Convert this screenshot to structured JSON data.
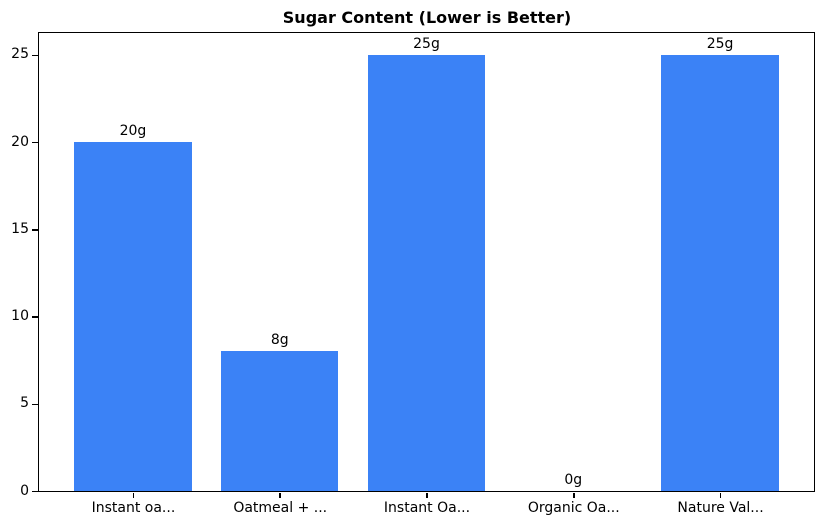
{
  "chart_data": {
    "type": "bar",
    "title": "Sugar Content (Lower is Better)",
    "categories": [
      "Instant oa...",
      "Oatmeal + ...",
      "Instant Oa...",
      "Organic Oa...",
      "Nature Val..."
    ],
    "values": [
      20,
      8,
      25,
      0,
      25
    ],
    "bar_labels": [
      "20g",
      "8g",
      "25g",
      "0g",
      "25g"
    ],
    "xlabel": "",
    "ylabel": "",
    "yticks": [
      0,
      5,
      10,
      15,
      20,
      25
    ],
    "ylim": [
      0,
      26.25
    ],
    "xlim": [
      -0.64,
      4.64
    ],
    "bar_width": 0.8,
    "bar_color": "#3b82f6",
    "grid": "off",
    "legend": "none",
    "plot_border_color": "#000000",
    "background_color": "#ffffff"
  }
}
